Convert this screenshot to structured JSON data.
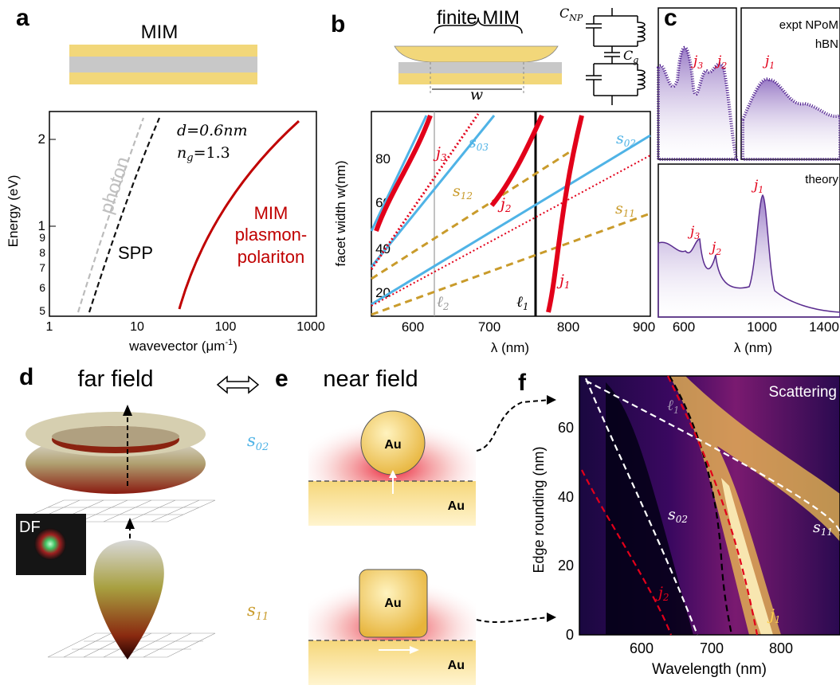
{
  "panel_letters": [
    "a",
    "b",
    "c",
    "d",
    "e",
    "f"
  ],
  "panel_a": {
    "title": "MIM",
    "param_d": "d=0.6nm",
    "param_n": "n",
    "param_n_sub": "g",
    "param_n_val": "=1.3",
    "label_photon": "photon",
    "label_spp": "SPP",
    "label_mim": [
      "MIM",
      "plasmon-",
      "polariton"
    ],
    "ylabel": "Energy (eV)",
    "xlabel": "wavevector (μm",
    "xlabel_sup": "-1",
    "xlabel_end": ")",
    "yticks": [
      "5",
      "6",
      "7",
      "8",
      "9",
      "1",
      "2"
    ],
    "xticks": [
      "1",
      "10",
      "100",
      "1000"
    ]
  },
  "panel_b": {
    "title": "finite MIM",
    "w_label": "w",
    "c_np": "C",
    "c_np_sub": "NP",
    "c_g": "C",
    "c_g_sub": "g",
    "ylabel": "facet width w(nm)",
    "xlabel": "λ (nm)",
    "xticks": [
      "600",
      "700",
      "800",
      "900"
    ],
    "yticks": [
      "20",
      "40",
      "60",
      "80"
    ],
    "labels": {
      "j3": "j",
      "j3_sub": "3",
      "j2": "j",
      "j2_sub": "2",
      "j1": "j",
      "j1_sub": "1",
      "s03": "s",
      "s03_sub": "03",
      "s02": "s",
      "s02_sub": "02",
      "s12": "s",
      "s12_sub": "12",
      "s11": "s",
      "s11_sub": "11",
      "l2": "ℓ",
      "l2_sub": "2",
      "l1": "ℓ",
      "l1_sub": "1"
    }
  },
  "panel_c": {
    "expt_title": "expt NPoM",
    "expt_sub": "hBN",
    "theory_title": "theory",
    "xlabel": "λ (nm)",
    "xticks": [
      "600",
      "1000",
      "1400"
    ],
    "labels": {
      "j3": "j",
      "j3_sub": "3",
      "j2": "j",
      "j2_sub": "2",
      "j1": "j",
      "j1_sub": "1"
    }
  },
  "panel_d": {
    "title": "far field",
    "s02": "s",
    "s02_sub": "02",
    "s11": "s",
    "s11_sub": "11",
    "df": "DF"
  },
  "panel_e": {
    "title": "near field",
    "au": "Au"
  },
  "panel_f": {
    "title": "Scattering",
    "ylabel": "Edge rounding (nm)",
    "xlabel": "Wavelength (nm)",
    "xticks": [
      "600",
      "700",
      "800"
    ],
    "yticks": [
      "0",
      "20",
      "40",
      "60"
    ],
    "labels": {
      "l1": "ℓ",
      "l1_sub": "1",
      "s02": "s",
      "s02_sub": "02",
      "s11": "s",
      "s11_sub": "11",
      "j2": "j",
      "j2_sub": "2",
      "j1": "j",
      "j1_sub": "1"
    }
  },
  "colors": {
    "gold": "#f2d77a",
    "gray": "#c8c8c8",
    "red": "#e2001a",
    "cyan": "#4fb3e6",
    "ochre": "#c99b2b",
    "purple": "#5a2c8f",
    "darkred": "#c00000"
  }
}
